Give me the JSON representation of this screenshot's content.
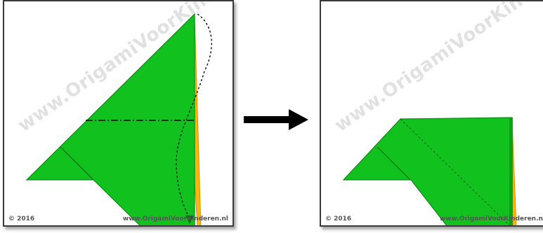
{
  "panels": [
    {
      "copyright": "© 2016",
      "website": "www.OrigamiVoorKinderen.nl",
      "watermark": "www.OrigamiVoorKinderen.nl"
    },
    {
      "copyright": "© 2016",
      "website": "www.OrigamiVoorKinderen.nl",
      "watermark": "www.OrigamiVoorKinderen.nl"
    }
  ],
  "colors": {
    "paper_front": "#11c21f",
    "paper_edge": "#0b8c14",
    "paper_back": "#f5b515",
    "arrow": "#000000",
    "frame": "#3a3a3a"
  },
  "icons": {
    "next_step": "right-arrow-icon"
  }
}
